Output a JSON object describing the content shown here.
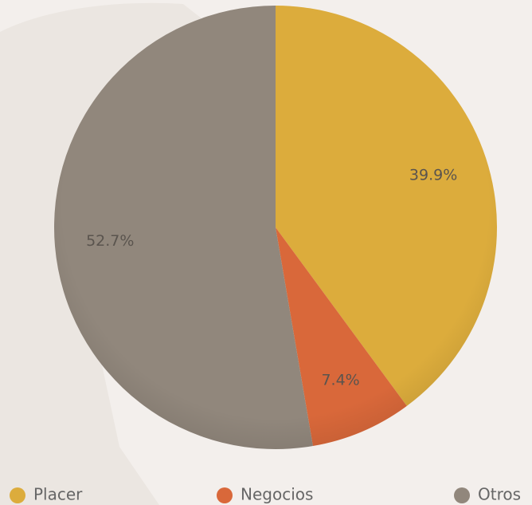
{
  "chart_data": {
    "type": "pie",
    "categories": [
      "Placer",
      "Negocios",
      "Otros"
    ],
    "values": [
      39.9,
      7.4,
      52.7
    ],
    "value_labels": [
      "39.9%",
      "7.4%",
      "52.7%"
    ],
    "colors": [
      "#dcac3c",
      "#d9683a",
      "#91877c"
    ],
    "legend": "bottom"
  }
}
